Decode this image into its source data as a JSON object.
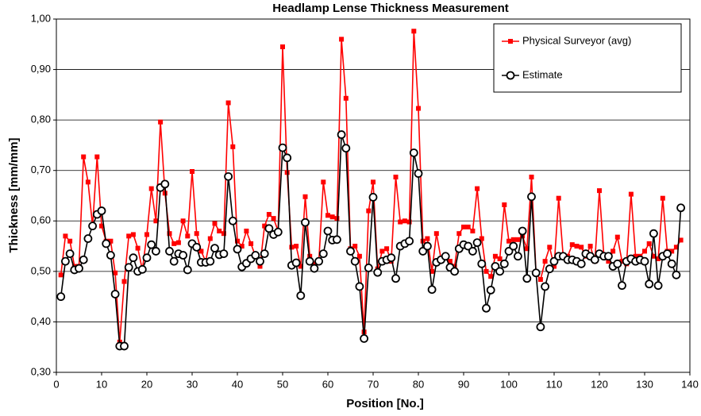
{
  "chart_data": {
    "type": "line",
    "title": "Headlamp Lense Thickness Measurement",
    "x_label": "Position [No.]",
    "y_label": "Thickness [mm/mm]",
    "x": [
      1,
      2,
      3,
      4,
      5,
      6,
      7,
      8,
      9,
      10,
      11,
      12,
      13,
      14,
      15,
      16,
      17,
      18,
      19,
      20,
      21,
      22,
      23,
      24,
      25,
      26,
      27,
      28,
      29,
      30,
      31,
      32,
      33,
      34,
      35,
      36,
      37,
      38,
      39,
      40,
      41,
      42,
      43,
      44,
      45,
      46,
      47,
      48,
      49,
      50,
      51,
      52,
      53,
      54,
      55,
      56,
      57,
      58,
      59,
      60,
      61,
      62,
      63,
      64,
      65,
      66,
      67,
      68,
      69,
      70,
      71,
      72,
      73,
      74,
      75,
      76,
      77,
      78,
      79,
      80,
      81,
      82,
      83,
      84,
      85,
      86,
      87,
      88,
      89,
      90,
      91,
      92,
      93,
      94,
      95,
      96,
      97,
      98,
      99,
      100,
      101,
      102,
      103,
      104,
      105,
      106,
      107,
      108,
      109,
      110,
      111,
      112,
      113,
      114,
      115,
      116,
      117,
      118,
      119,
      120,
      121,
      122,
      123,
      124,
      125,
      126,
      127,
      128,
      129,
      130,
      131,
      132,
      133,
      134,
      135,
      136,
      137,
      138
    ],
    "series": [
      {
        "name": "Physical Surveyor (avg)",
        "color": "#ff0000",
        "marker": "square",
        "values": [
          0.493,
          0.57,
          0.56,
          0.51,
          0.51,
          0.727,
          0.677,
          0.59,
          0.727,
          0.59,
          0.56,
          0.56,
          0.497,
          0.36,
          0.48,
          0.57,
          0.573,
          0.546,
          0.503,
          0.573,
          0.664,
          0.6,
          0.796,
          0.655,
          0.575,
          0.555,
          0.557,
          0.6,
          0.57,
          0.698,
          0.575,
          0.54,
          0.52,
          0.565,
          0.595,
          0.58,
          0.575,
          0.834,
          0.747,
          0.56,
          0.55,
          0.58,
          0.555,
          0.53,
          0.51,
          0.59,
          0.613,
          0.605,
          0.58,
          0.945,
          0.696,
          0.548,
          0.55,
          0.51,
          0.648,
          0.53,
          0.515,
          0.52,
          0.677,
          0.611,
          0.608,
          0.605,
          0.96,
          0.843,
          0.545,
          0.55,
          0.53,
          0.38,
          0.62,
          0.677,
          0.505,
          0.54,
          0.545,
          0.52,
          0.687,
          0.598,
          0.6,
          0.598,
          0.976,
          0.823,
          0.56,
          0.565,
          0.5,
          0.575,
          0.525,
          0.53,
          0.52,
          0.51,
          0.575,
          0.588,
          0.588,
          0.58,
          0.664,
          0.565,
          0.5,
          0.49,
          0.53,
          0.525,
          0.632,
          0.56,
          0.563,
          0.563,
          0.57,
          0.545,
          0.687,
          0.497,
          0.484,
          0.52,
          0.548,
          0.51,
          0.645,
          0.53,
          0.53,
          0.553,
          0.55,
          0.548,
          0.53,
          0.55,
          0.52,
          0.66,
          0.53,
          0.52,
          0.54,
          0.568,
          0.52,
          0.515,
          0.653,
          0.53,
          0.53,
          0.54,
          0.555,
          0.53,
          0.525,
          0.645,
          0.54,
          0.54,
          0.548,
          0.562
        ]
      },
      {
        "name": "Estimate",
        "color": "#000000",
        "marker": "circle",
        "values": [
          0.45,
          0.52,
          0.535,
          0.503,
          0.506,
          0.523,
          0.565,
          0.59,
          0.613,
          0.62,
          0.555,
          0.532,
          0.455,
          0.352,
          0.352,
          0.508,
          0.527,
          0.5,
          0.504,
          0.527,
          0.553,
          0.54,
          0.666,
          0.673,
          0.54,
          0.52,
          0.535,
          0.532,
          0.503,
          0.555,
          0.548,
          0.518,
          0.518,
          0.52,
          0.546,
          0.533,
          0.535,
          0.688,
          0.6,
          0.544,
          0.509,
          0.516,
          0.525,
          0.532,
          0.52,
          0.535,
          0.585,
          0.573,
          0.578,
          0.745,
          0.725,
          0.512,
          0.517,
          0.452,
          0.597,
          0.52,
          0.506,
          0.52,
          0.535,
          0.58,
          0.562,
          0.563,
          0.771,
          0.744,
          0.54,
          0.52,
          0.47,
          0.367,
          0.507,
          0.647,
          0.498,
          0.52,
          0.523,
          0.527,
          0.486,
          0.55,
          0.555,
          0.56,
          0.735,
          0.694,
          0.54,
          0.55,
          0.464,
          0.518,
          0.523,
          0.53,
          0.508,
          0.5,
          0.545,
          0.553,
          0.55,
          0.54,
          0.557,
          0.515,
          0.427,
          0.463,
          0.51,
          0.5,
          0.515,
          0.54,
          0.55,
          0.53,
          0.58,
          0.486,
          0.648,
          0.497,
          0.39,
          0.47,
          0.505,
          0.52,
          0.53,
          0.53,
          0.523,
          0.523,
          0.52,
          0.515,
          0.535,
          0.53,
          0.523,
          0.535,
          0.53,
          0.53,
          0.51,
          0.515,
          0.472,
          0.52,
          0.525,
          0.52,
          0.523,
          0.52,
          0.475,
          0.575,
          0.472,
          0.53,
          0.535,
          0.515,
          0.493,
          0.626
        ]
      }
    ],
    "xlim": [
      0,
      140
    ],
    "xticks": [
      0,
      10,
      20,
      30,
      40,
      50,
      60,
      70,
      80,
      90,
      100,
      110,
      120,
      130,
      140
    ],
    "ylim": [
      0.3,
      1.0
    ],
    "yticks": [
      {
        "value": 0.3,
        "label": "0,30"
      },
      {
        "value": 0.4,
        "label": "0,40"
      },
      {
        "value": 0.5,
        "label": "0,50"
      },
      {
        "value": 0.6,
        "label": "0,60"
      },
      {
        "value": 0.7,
        "label": "0,70"
      },
      {
        "value": 0.8,
        "label": "0,80"
      },
      {
        "value": 0.9,
        "label": "0,90"
      },
      {
        "value": 1.0,
        "label": "1,00"
      }
    ],
    "grid": true,
    "legend": "upper right"
  }
}
